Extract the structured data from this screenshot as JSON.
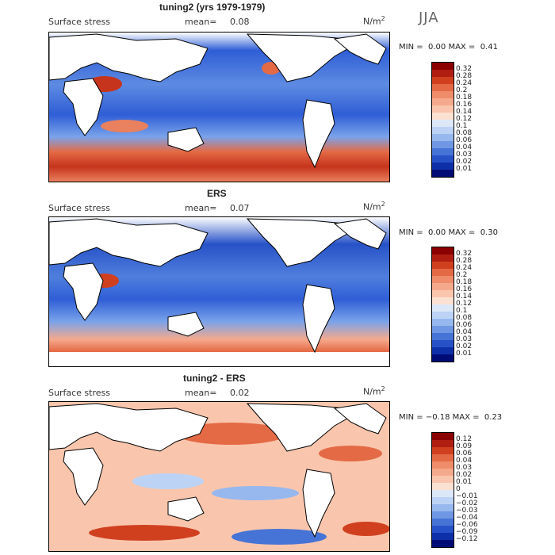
{
  "season": "JJA",
  "panels": [
    {
      "title": "tuning2 (yrs 1979-1979)",
      "variable": "Surface stress",
      "mean_label": "mean=",
      "mean_value": "0.08",
      "unit_base": "N/m",
      "unit_exp": "2",
      "min_label": "MIN =",
      "min_value": "0.00",
      "max_label": "MAX =",
      "max_value": "0.41",
      "colorbar": [
        "0.32",
        "0.28",
        "0.24",
        "0.2",
        "0.18",
        "0.16",
        "0.14",
        "0.12",
        "0.1",
        "0.08",
        "0.06",
        "0.04",
        "0.03",
        "0.02",
        "0.01"
      ],
      "colors": [
        "#8b0000",
        "#b01e12",
        "#d0401f",
        "#e46a45",
        "#ef8c69",
        "#f5a98c",
        "#f9c6ad",
        "#fbe1d2",
        "#dce8f8",
        "#bcd3f5",
        "#97b8ee",
        "#6f97e3",
        "#4673d6",
        "#2752c7",
        "#0d2fa8",
        "#000c75"
      ]
    },
    {
      "title": "ERS",
      "variable": "Surface stress",
      "mean_label": "mean=",
      "mean_value": "0.07",
      "unit_base": "N/m",
      "unit_exp": "2",
      "min_label": "MIN =",
      "min_value": "0.00",
      "max_label": "MAX =",
      "max_value": "0.30",
      "colorbar": [
        "0.32",
        "0.28",
        "0.24",
        "0.2",
        "0.18",
        "0.16",
        "0.14",
        "0.12",
        "0.1",
        "0.08",
        "0.06",
        "0.04",
        "0.03",
        "0.02",
        "0.01"
      ],
      "colors": [
        "#8b0000",
        "#b01e12",
        "#d0401f",
        "#e46a45",
        "#ef8c69",
        "#f5a98c",
        "#f9c6ad",
        "#fbe1d2",
        "#dce8f8",
        "#bcd3f5",
        "#97b8ee",
        "#6f97e3",
        "#4673d6",
        "#2752c7",
        "#0d2fa8",
        "#000c75"
      ]
    },
    {
      "title": "tuning2 - ERS",
      "variable": "Surface stress",
      "mean_label": "mean=",
      "mean_value": "0.02",
      "unit_base": "N/m",
      "unit_exp": "2",
      "min_label": "MIN =",
      "min_value": "−0.18",
      "max_label": "MAX =",
      "max_value": "0.23",
      "colorbar": [
        "0.12",
        "0.09",
        "0.06",
        "0.04",
        "0.03",
        "0.02",
        "0.01",
        "0",
        "−0.01",
        "−0.02",
        "−0.03",
        "−0.04",
        "−0.06",
        "−0.09",
        "−0.12"
      ],
      "colors": [
        "#8b0000",
        "#b01e12",
        "#d0401f",
        "#e46a45",
        "#ef8c69",
        "#f5a98c",
        "#f9c6ad",
        "#fbe1d2",
        "#dce8f8",
        "#bcd3f5",
        "#97b8ee",
        "#6f97e3",
        "#4673d6",
        "#2752c7",
        "#0d2fa8",
        "#000c75"
      ]
    }
  ]
}
